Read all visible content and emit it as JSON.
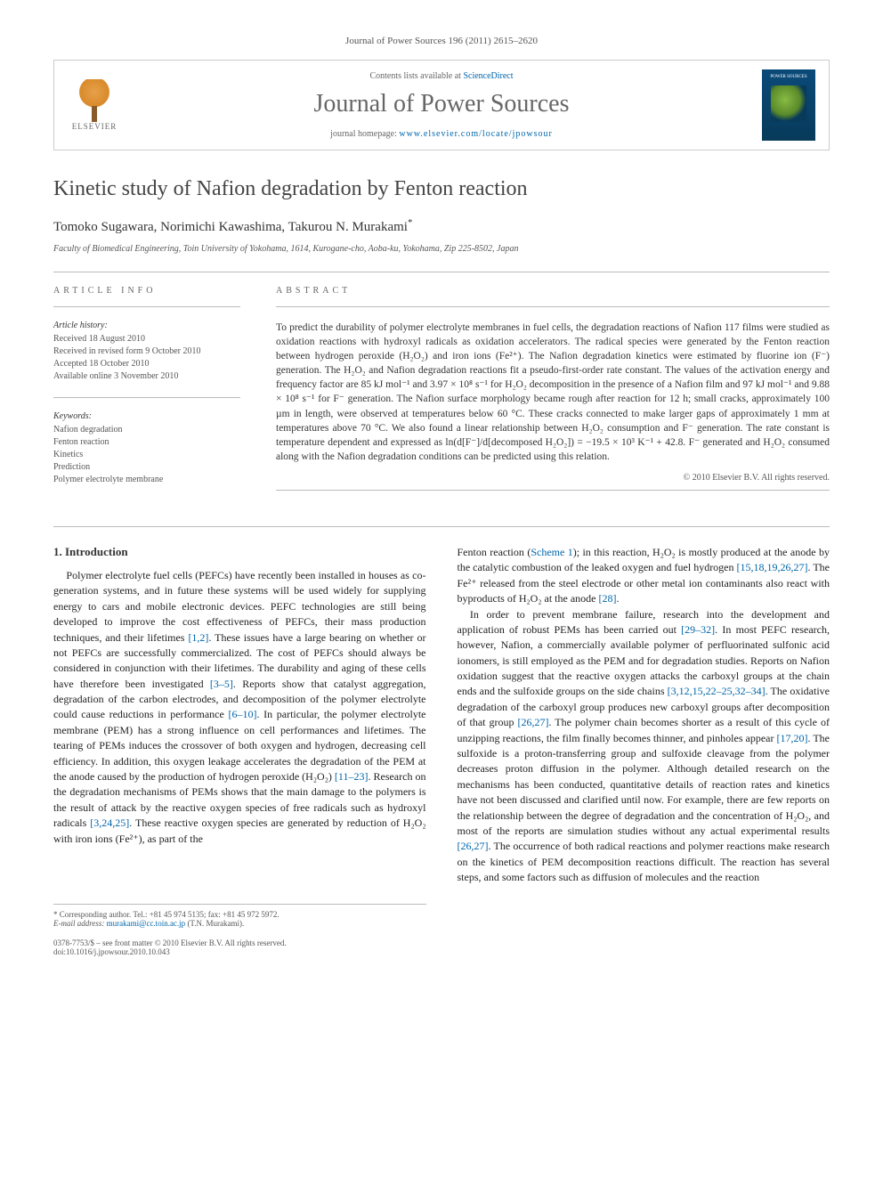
{
  "journal": {
    "citation": "Journal of Power Sources 196 (2011) 2615–2620",
    "name": "Journal of Power Sources",
    "contentsPrefix": "Contents lists available at ",
    "contentsLink": "ScienceDirect",
    "homepagePrefix": "journal homepage: ",
    "homepageUrl": "www.elsevier.com/locate/jpowsour",
    "coverTitle": "POWER SOURCES",
    "publisherLogoText": "ELSEVIER"
  },
  "article": {
    "title": "Kinetic study of Nafion degradation by Fenton reaction",
    "authors": "Tomoko Sugawara, Norimichi Kawashima, Takurou N. Murakami",
    "corrMark": "*",
    "affiliation": "Faculty of Biomedical Engineering, Toin University of Yokohama, 1614, Kurogane-cho, Aoba-ku, Yokohama, Zip 225-8502, Japan"
  },
  "info": {
    "sectionLabel": "ARTICLE INFO",
    "historyHeading": "Article history:",
    "history": [
      "Received 18 August 2010",
      "Received in revised form 9 October 2010",
      "Accepted 18 October 2010",
      "Available online 3 November 2010"
    ],
    "keywordsHeading": "Keywords:",
    "keywords": [
      "Nafion degradation",
      "Fenton reaction",
      "Kinetics",
      "Prediction",
      "Polymer electrolyte membrane"
    ]
  },
  "abstract": {
    "sectionLabel": "ABSTRACT",
    "text": "To predict the durability of polymer electrolyte membranes in fuel cells, the degradation reactions of Nafion 117 films were studied as oxidation reactions with hydroxyl radicals as oxidation accelerators. The radical species were generated by the Fenton reaction between hydrogen peroxide (H₂O₂) and iron ions (Fe²⁺). The Nafion degradation kinetics were estimated by fluorine ion (F⁻) generation. The H₂O₂ and Nafion degradation reactions fit a pseudo-first-order rate constant. The values of the activation energy and frequency factor are 85 kJ mol⁻¹ and 3.97 × 10⁸ s⁻¹ for H₂O₂ decomposition in the presence of a Nafion film and 97 kJ mol⁻¹ and 9.88 × 10⁸ s⁻¹ for F⁻ generation. The Nafion surface morphology became rough after reaction for 12 h; small cracks, approximately 100 µm in length, were observed at temperatures below 60 °C. These cracks connected to make larger gaps of approximately 1 mm at temperatures above 70 °C. We also found a linear relationship between H₂O₂ consumption and F⁻ generation. The rate constant is temperature dependent and expressed as ln(d[F⁻]/d[decomposed H₂O₂]) = −19.5 × 10³ K⁻¹ + 42.8. F⁻ generated and H₂O₂ consumed along with the Nafion degradation conditions can be predicted using this relation.",
    "copyright": "© 2010 Elsevier B.V. All rights reserved."
  },
  "body": {
    "heading1": "1. Introduction",
    "col1p1": "Polymer electrolyte fuel cells (PEFCs) have recently been installed in houses as co-generation systems, and in future these systems will be used widely for supplying energy to cars and mobile electronic devices. PEFC technologies are still being developed to improve the cost effectiveness of PEFCs, their mass production techniques, and their lifetimes [1,2]. These issues have a large bearing on whether or not PEFCs are successfully commercialized. The cost of PEFCs should always be considered in conjunction with their lifetimes. The durability and aging of these cells have therefore been investigated [3–5]. Reports show that catalyst aggregation, degradation of the carbon electrodes, and decomposition of the polymer electrolyte could cause reductions in performance [6–10]. In particular, the polymer electrolyte membrane (PEM) has a strong influence on cell performances and lifetimes. The tearing of PEMs induces the crossover of both oxygen and hydrogen, decreasing cell efficiency. In addition, this oxygen leakage accelerates the degradation of the PEM at the anode caused by the production of hydrogen peroxide (H₂O₂) [11–23]. Research on the degradation mechanisms of PEMs shows that the main damage to the polymers is the result of attack by the reactive oxygen species of free radicals such as hydroxyl radicals [3,24,25]. These reactive oxygen species are generated by reduction of H₂O₂ with iron ions (Fe²⁺), as part of the",
    "col2p1": "Fenton reaction (Scheme 1); in this reaction, H₂O₂ is mostly produced at the anode by the catalytic combustion of the leaked oxygen and fuel hydrogen [15,18,19,26,27]. The Fe²⁺ released from the steel electrode or other metal ion contaminants also react with byproducts of H₂O₂ at the anode [28].",
    "col2p2": "In order to prevent membrane failure, research into the development and application of robust PEMs has been carried out [29–32]. In most PEFC research, however, Nafion, a commercially available polymer of perfluorinated sulfonic acid ionomers, is still employed as the PEM and for degradation studies. Reports on Nafion oxidation suggest that the reactive oxygen attacks the carboxyl groups at the chain ends and the sulfoxide groups on the side chains [3,12,15,22–25,32–34]. The oxidative degradation of the carboxyl group produces new carboxyl groups after decomposition of that group [26,27]. The polymer chain becomes shorter as a result of this cycle of unzipping reactions, the film finally becomes thinner, and pinholes appear [17,20]. The sulfoxide is a proton-transferring group and sulfoxide cleavage from the polymer decreases proton diffusion in the polymer. Although detailed research on the mechanisms has been conducted, quantitative details of reaction rates and kinetics have not been discussed and clarified until now. For example, there are few reports on the relationship between the degree of degradation and the concentration of H₂O₂, and most of the reports are simulation studies without any actual experimental results [26,27]. The occurrence of both radical reactions and polymer reactions make research on the kinetics of PEM decomposition reactions difficult. The reaction has several steps, and some factors such as diffusion of molecules and the reaction"
  },
  "footnotes": {
    "corrLabel": "* Corresponding author. Tel.: +81 45 974 5135; fax: +81 45 972 5972.",
    "emailLabel": "E-mail address: ",
    "email": "murakami@cc.toin.ac.jp",
    "emailSuffix": " (T.N. Murakami)."
  },
  "footer": {
    "line1": "0378-7753/$ – see front matter © 2010 Elsevier B.V. All rights reserved.",
    "line2": "doi:10.1016/j.jpowsour.2010.10.043"
  },
  "colors": {
    "link": "#0066aa",
    "text": "#333333",
    "muted": "#666666",
    "border": "#bbbbbb",
    "coverBg": "#0a4a7a"
  }
}
